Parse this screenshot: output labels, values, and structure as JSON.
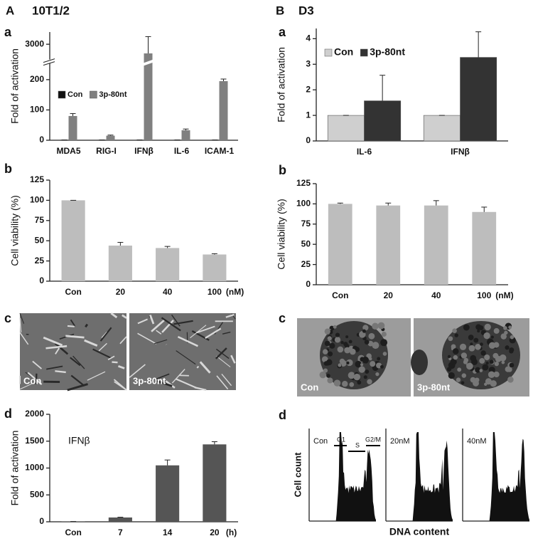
{
  "panels": [
    {
      "label": "A",
      "title": "10T1/2",
      "subpanels": [
        "a",
        "b",
        "c",
        "d"
      ],
      "images": [
        "Con",
        "3p-80nt"
      ]
    },
    {
      "label": "B",
      "title": "D3",
      "subpanels": [
        "a",
        "b",
        "c",
        "d"
      ],
      "images": [
        "Con",
        "3p-80nt"
      ],
      "flow": {
        "ylabel": "Cell count",
        "xlabel": "DNA content",
        "samples": [
          "Con",
          "20nM",
          "40nM"
        ],
        "gates": [
          "G1",
          "S",
          "G2/M"
        ]
      }
    }
  ],
  "chart_data": [
    {
      "type": "bar",
      "ylabel": "Fold of activation",
      "categories": [
        "MDA5",
        "RIG-I",
        "IFNβ",
        "IL-6",
        "ICAM-1"
      ],
      "series": [
        {
          "name": "Con",
          "color": "#111111",
          "values": [
            1,
            1,
            1,
            1,
            1
          ],
          "errors": [
            0,
            0,
            0,
            0,
            0
          ]
        },
        {
          "name": "3p-80nt",
          "color": "#808080",
          "values": [
            80,
            15,
            2700,
            33,
            195
          ],
          "errors": [
            8,
            2,
            550,
            4,
            7
          ]
        }
      ],
      "ylim": [
        0,
        3400
      ],
      "ybreak": [
        250,
        2500
      ],
      "yticks": [
        0,
        100,
        200,
        3000
      ],
      "legend": "center left"
    },
    {
      "type": "bar",
      "ylabel": "Cell viability (%)",
      "xlabel": "(nM)",
      "categories": [
        "Con",
        "20",
        "40",
        "100"
      ],
      "values": [
        100,
        44,
        41,
        33
      ],
      "errors": [
        0,
        4,
        2,
        1
      ],
      "color": "#bdbdbd",
      "ylim": [
        0,
        125
      ],
      "yticks": [
        0,
        25,
        50,
        75,
        100,
        125
      ]
    },
    {
      "type": "bar",
      "title": "IFNβ",
      "ylabel": "Fold of activation",
      "xlabel": "(h)",
      "categories": [
        "Con",
        "7",
        "14",
        "20"
      ],
      "values": [
        5,
        80,
        1050,
        1440
      ],
      "errors": [
        0,
        5,
        100,
        50
      ],
      "color": "#555555",
      "ylim": [
        0,
        2000
      ],
      "yticks": [
        0,
        500,
        1000,
        1500,
        2000
      ]
    },
    {
      "type": "bar",
      "ylabel": "Fold of activation",
      "categories": [
        "IL-6",
        "IFNβ"
      ],
      "series": [
        {
          "name": "Con",
          "color": "#cfcfcf",
          "values": [
            1,
            1
          ],
          "errors": [
            0,
            0
          ]
        },
        {
          "name": "3p-80nt",
          "color": "#333333",
          "values": [
            1.57,
            3.27
          ],
          "errors": [
            1,
            1
          ]
        }
      ],
      "ylim": [
        0,
        4.4
      ],
      "yticks": [
        0,
        1,
        2,
        3,
        4
      ],
      "legend": "upper left"
    },
    {
      "type": "bar",
      "ylabel": "Cell viability (%)",
      "xlabel": "(nM)",
      "categories": [
        "Con",
        "20",
        "40",
        "100"
      ],
      "values": [
        100,
        98,
        98,
        90
      ],
      "errors": [
        1,
        3,
        6,
        6
      ],
      "color": "#bdbdbd",
      "ylim": [
        0,
        125
      ],
      "yticks": [
        0,
        25,
        50,
        75,
        100,
        125
      ]
    }
  ]
}
